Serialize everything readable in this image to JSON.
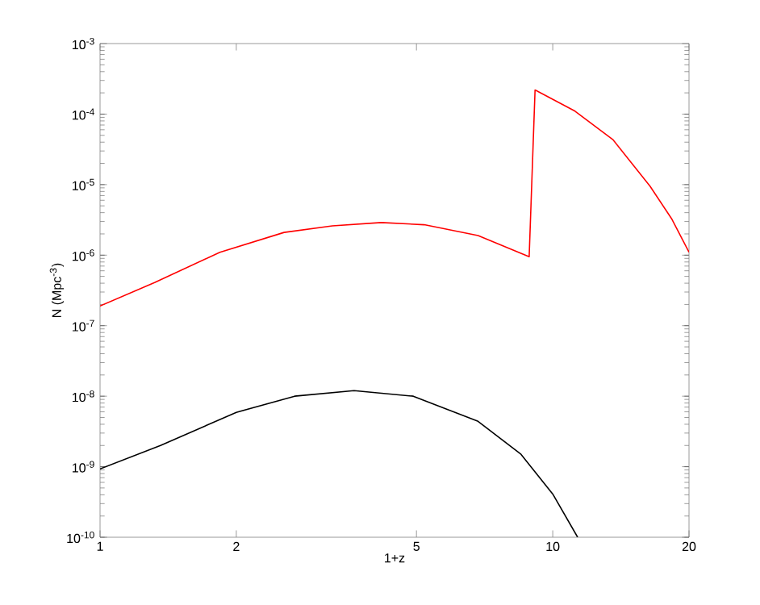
{
  "chart_data": {
    "type": "line",
    "xlabel": "1+z",
    "ylabel": "N (Mpc$^{-3}$)",
    "log": "xy",
    "grid": false,
    "marker": "none",
    "line_style": "solid",
    "xlim": [
      1,
      20
    ],
    "ylim": [
      1e-10,
      0.001
    ],
    "xticks": [
      1,
      2,
      5,
      10,
      20
    ],
    "yticks": [
      {
        "value": 1e-10,
        "label": "10$^{-10}$"
      },
      {
        "value": 1e-09,
        "label": "10$^{-9}$"
      },
      {
        "value": 1e-08,
        "label": "10$^{-8}$"
      },
      {
        "value": 1e-07,
        "label": "10$^{-7}$"
      },
      {
        "value": 1e-06,
        "label": "10$^{-6}$"
      },
      {
        "value": 1e-05,
        "label": "10$^{-5}$"
      },
      {
        "value": 0.0001,
        "label": "10$^{-4}$"
      },
      {
        "value": 0.001,
        "label": "10$^{-3}$"
      }
    ],
    "series": [
      {
        "color": "#ff0000",
        "x": [
          1,
          1.32,
          1.84,
          2.55,
          3.26,
          4.18,
          5.2,
          6.84,
          8.87,
          9.14,
          11.2,
          13.6,
          16.4,
          18.3,
          20
        ],
        "values": [
          1.9e-07,
          4.1e-07,
          1.1e-06,
          2.1e-06,
          2.6e-06,
          2.9e-06,
          2.7e-06,
          1.9e-06,
          9.5e-07,
          0.00022,
          0.00011,
          4.3e-05,
          9.5e-06,
          3.3e-06,
          1.1e-06
        ]
      },
      {
        "color": "#000000",
        "x": [
          1,
          1.36,
          2.0,
          2.69,
          3.64,
          4.92,
          6.84,
          8.51,
          10.0,
          11.35
        ],
        "values": [
          9.3e-10,
          2e-09,
          5.9e-09,
          1e-08,
          1.2e-08,
          1e-08,
          4.4e-09,
          1.5e-09,
          4.1e-10,
          1e-10
        ]
      }
    ]
  }
}
